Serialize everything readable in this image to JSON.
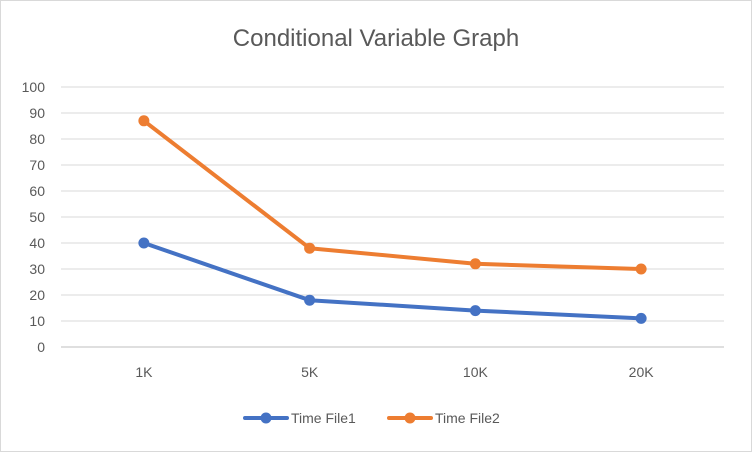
{
  "chart_data": {
    "type": "line",
    "title": "Conditional Variable Graph",
    "xlabel": "",
    "ylabel": "",
    "categories": [
      "1K",
      "5K",
      "10K",
      "20K"
    ],
    "ylim": [
      0,
      100
    ],
    "yticks": [
      0,
      10,
      20,
      30,
      40,
      50,
      60,
      70,
      80,
      90,
      100
    ],
    "grid": true,
    "legend": "bottom",
    "series": [
      {
        "name": "Time File1",
        "color": "#4472c4",
        "values": [
          40,
          18,
          14,
          11
        ]
      },
      {
        "name": "Time File2",
        "color": "#ed7d31",
        "values": [
          87,
          38,
          32,
          30
        ]
      }
    ]
  }
}
